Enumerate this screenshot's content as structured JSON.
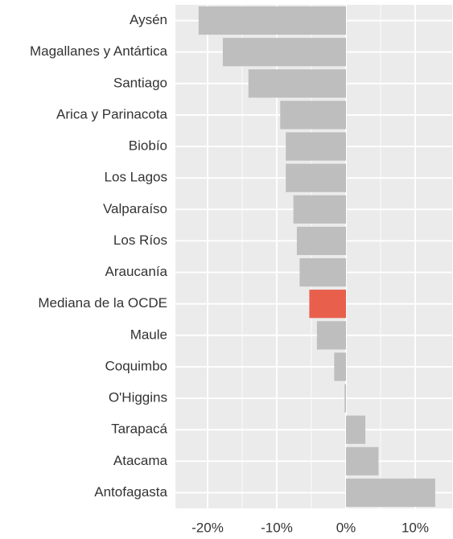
{
  "chart_data": {
    "type": "barh",
    "categories": [
      "Aysén",
      "Magallanes y Antártica",
      "Santiago",
      "Arica y Parinacota",
      "Biobío",
      "Los Lagos",
      "Valparaíso",
      "Los Ríos",
      "Araucanía",
      "Mediana de la OCDE",
      "Maule",
      "Coquimbo",
      "O'Higgins",
      "Tarapacá",
      "Atacama",
      "Antofagasta"
    ],
    "values": [
      -21.3,
      -17.8,
      -14.1,
      -9.5,
      -8.7,
      -8.7,
      -7.6,
      -7.1,
      -6.7,
      -5.3,
      -4.2,
      -1.7,
      -0.2,
      2.8,
      4.7,
      12.9
    ],
    "colors": [
      "#bebebe",
      "#bebebe",
      "#bebebe",
      "#bebebe",
      "#bebebe",
      "#bebebe",
      "#bebebe",
      "#bebebe",
      "#bebebe",
      "#e8604c",
      "#bebebe",
      "#bebebe",
      "#bebebe",
      "#bebebe",
      "#bebebe",
      "#bebebe"
    ],
    "xlim": [
      -24.65,
      15.35
    ],
    "xticks": [
      {
        "value": -20,
        "label": "-20%"
      },
      {
        "value": -10,
        "label": "-10%"
      },
      {
        "value": 0,
        "label": "0%"
      },
      {
        "value": 10,
        "label": "10%"
      }
    ],
    "xminor": [
      -15,
      -5,
      5
    ],
    "grid": true
  }
}
